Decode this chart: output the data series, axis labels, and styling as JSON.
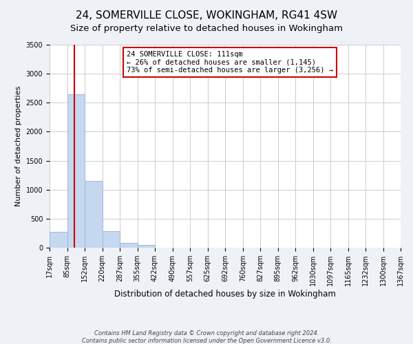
{
  "title": "24, SOMERVILLE CLOSE, WOKINGHAM, RG41 4SW",
  "subtitle": "Size of property relative to detached houses in Wokingham",
  "xlabel": "Distribution of detached houses by size in Wokingham",
  "ylabel": "Number of detached properties",
  "bin_edges": [
    17,
    85,
    152,
    220,
    287,
    355,
    422,
    490,
    557,
    625,
    692,
    760,
    827,
    895,
    962,
    1030,
    1097,
    1165,
    1232,
    1300,
    1367
  ],
  "bin_labels": [
    "17sqm",
    "85sqm",
    "152sqm",
    "220sqm",
    "287sqm",
    "355sqm",
    "422sqm",
    "490sqm",
    "557sqm",
    "625sqm",
    "692sqm",
    "760sqm",
    "827sqm",
    "895sqm",
    "962sqm",
    "1030sqm",
    "1097sqm",
    "1165sqm",
    "1232sqm",
    "1300sqm",
    "1367sqm"
  ],
  "bar_heights": [
    275,
    2640,
    1145,
    280,
    80,
    45,
    0,
    0,
    0,
    0,
    0,
    0,
    0,
    0,
    0,
    0,
    0,
    0,
    0,
    0
  ],
  "bar_color": "#c5d8f0",
  "bar_edge_color": "#a0b8d8",
  "property_line_x": 111,
  "property_line_color": "#cc0000",
  "annotation_title": "24 SOMERVILLE CLOSE: 111sqm",
  "annotation_line1": "← 26% of detached houses are smaller (1,145)",
  "annotation_line2": "73% of semi-detached houses are larger (3,256) →",
  "annotation_box_color": "#cc0000",
  "ylim": [
    0,
    3500
  ],
  "yticks": [
    0,
    500,
    1000,
    1500,
    2000,
    2500,
    3000,
    3500
  ],
  "footer1": "Contains HM Land Registry data © Crown copyright and database right 2024.",
  "footer2": "Contains public sector information licensed under the Open Government Licence v3.0.",
  "background_color": "#eef2f7",
  "plot_bg_color": "#ffffff",
  "title_fontsize": 11,
  "subtitle_fontsize": 9.5,
  "ylabel_fontsize": 8,
  "xlabel_fontsize": 8.5,
  "tick_fontsize": 7,
  "annotation_fontsize": 7.5,
  "footer_fontsize": 6
}
